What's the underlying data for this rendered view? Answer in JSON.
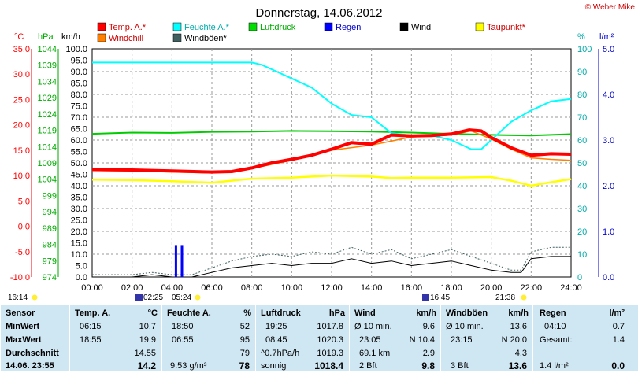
{
  "header": {
    "title": "Donnerstag, 14.06.2012",
    "copyright": "© Weber Mike"
  },
  "legend": [
    {
      "label": "Temp. A.*",
      "color": "#ff0000"
    },
    {
      "label": "Feuchte A.*",
      "color": "#00ffff"
    },
    {
      "label": "Luftdruck",
      "color": "#00dd00"
    },
    {
      "label": "Regen",
      "color": "#0000ff"
    },
    {
      "label": "Wind",
      "color": "#000000"
    },
    {
      "label": "Taupunkt*",
      "color": "#ffff00"
    },
    {
      "label": "Windchill",
      "color": "#ff8000"
    },
    {
      "label": "Windböen*",
      "color": "#406060"
    }
  ],
  "axis_units": {
    "temp": "°C",
    "pressure": "hPa",
    "wind": "km/h",
    "humidity": "%",
    "rain": "l/m²"
  },
  "sun_marks": {
    "sunrise_left": "16:14",
    "moon_1": "02:25",
    "sunrise": "05:24",
    "moon_2": "16:45",
    "sunset": "21:38"
  },
  "chart_data": {
    "type": "line",
    "x_ticks": [
      "00:00",
      "02:00",
      "04:00",
      "06:00",
      "08:00",
      "10:00",
      "12:00",
      "14:00",
      "16:00",
      "18:00",
      "20:00",
      "22:00",
      "24:00"
    ],
    "axes": {
      "temp": {
        "ticks": [
          "35.0",
          "30.0",
          "25.0",
          "20.0",
          "15.0",
          "10.0",
          "5.0",
          "0.0",
          "-5.0",
          "-10.0"
        ],
        "ylim": [
          -10,
          35
        ]
      },
      "pressure": {
        "ticks": [
          "1044",
          "1039",
          "1034",
          "1029",
          "1024",
          "1019",
          "1014",
          "1009",
          "1004",
          "999",
          "994",
          "989",
          "984",
          "979",
          "974"
        ],
        "ylim": [
          974,
          1044
        ]
      },
      "wind": {
        "ticks": [
          "100.0",
          "95.0",
          "90.0",
          "85.0",
          "80.0",
          "75.0",
          "70.0",
          "65.0",
          "60.0",
          "55.0",
          "50.0",
          "45.0",
          "40.0",
          "35.0",
          "30.0",
          "25.0",
          "20.0",
          "15.0",
          "10.0",
          "5.0",
          "0.0"
        ],
        "ylim": [
          0,
          100
        ]
      },
      "humidity": {
        "ticks": [
          "100",
          "90",
          "80",
          "70",
          "60",
          "50",
          "40",
          "30",
          "20",
          "10",
          "0"
        ],
        "ylim": [
          0,
          100
        ]
      },
      "rain": {
        "ticks": [
          "5.0",
          "4.0",
          "3.0",
          "2.0",
          "1.0",
          "0.0"
        ],
        "ylim": [
          0,
          5
        ]
      }
    },
    "series": [
      {
        "name": "Temp. A.*",
        "axis": "temp",
        "x": [
          0,
          2,
          4,
          6,
          7,
          8,
          9,
          10,
          11,
          12,
          13,
          14,
          15,
          16,
          17,
          18,
          18.9,
          19.5,
          20,
          21,
          22,
          23,
          24
        ],
        "y": [
          11.2,
          11.1,
          10.9,
          10.7,
          10.8,
          11.5,
          12.5,
          13.2,
          14.0,
          15.2,
          16.5,
          16.2,
          18.0,
          17.8,
          17.9,
          18.2,
          19.0,
          18.8,
          17.5,
          15.5,
          14.0,
          14.3,
          14.2
        ]
      },
      {
        "name": "Windchill",
        "axis": "temp",
        "x": [
          0,
          2,
          4,
          6,
          8,
          10,
          12,
          14,
          16,
          18,
          19,
          20,
          21,
          22,
          23,
          24
        ],
        "y": [
          11.0,
          10.9,
          10.7,
          10.5,
          11.4,
          13.0,
          15.0,
          16.0,
          17.6,
          18.0,
          18.8,
          17.2,
          15.2,
          13.5,
          13.2,
          13.0
        ]
      },
      {
        "name": "Feuchte A.*",
        "axis": "humidity",
        "x": [
          0,
          1,
          2,
          4,
          6,
          8,
          8.5,
          9,
          10,
          11,
          12,
          13,
          14,
          15,
          16,
          17,
          18,
          19,
          19.5,
          20,
          21,
          22,
          23,
          24
        ],
        "y": [
          94,
          94,
          94,
          94,
          94,
          94,
          93,
          91,
          87,
          83,
          76,
          71,
          70,
          63,
          62,
          62,
          60,
          56,
          56,
          60,
          68,
          73,
          77,
          78
        ]
      },
      {
        "name": "Luftdruck",
        "axis": "pressure",
        "x": [
          0,
          2,
          4,
          6,
          8,
          10,
          12,
          14,
          16,
          18,
          20,
          22,
          24
        ],
        "y": [
          1017.9,
          1018.3,
          1018.2,
          1018.5,
          1018.6,
          1018.8,
          1018.7,
          1018.6,
          1018.3,
          1017.9,
          1017.6,
          1017.4,
          1017.8
        ]
      },
      {
        "name": "Taupunkt*",
        "axis": "temp",
        "x": [
          0,
          2,
          4,
          6,
          8,
          10,
          12,
          14,
          15,
          16,
          18,
          20,
          21,
          22,
          23,
          24
        ],
        "y": [
          9.2,
          9.1,
          8.9,
          8.6,
          9.4,
          9.6,
          10.0,
          9.8,
          9.5,
          9.6,
          9.6,
          9.7,
          9.0,
          8.0,
          8.7,
          9.3
        ]
      },
      {
        "name": "Wind",
        "axis": "wind",
        "x": [
          0,
          2,
          3,
          4,
          5,
          6,
          7,
          8,
          9,
          10,
          11,
          12,
          13,
          14,
          15,
          16,
          17,
          18,
          19,
          20,
          21,
          21.5,
          22,
          23,
          24
        ],
        "y": [
          0,
          0,
          1,
          0,
          0,
          2,
          4,
          5,
          6,
          5,
          6,
          6,
          8,
          6,
          7,
          5,
          6,
          7,
          5,
          3,
          2,
          2,
          8,
          9,
          9
        ]
      },
      {
        "name": "Windböen*",
        "axis": "wind",
        "x": [
          0,
          2,
          3,
          4,
          5,
          6,
          7,
          8,
          9,
          10,
          11,
          12,
          13,
          14,
          15,
          16,
          17,
          18,
          19,
          20,
          21,
          21.5,
          22,
          23,
          24
        ],
        "y": [
          1,
          1,
          2,
          1,
          1,
          4,
          7,
          9,
          10,
          9,
          11,
          10,
          13,
          10,
          12,
          8,
          10,
          12,
          9,
          6,
          3,
          3,
          11,
          13,
          13
        ]
      },
      {
        "name": "Regen",
        "axis": "rain",
        "x": [
          4.0,
          4.2,
          4.3,
          4.5
        ],
        "y": [
          0,
          0.7,
          0,
          0.7
        ]
      }
    ]
  },
  "stats": {
    "sensor": {
      "title": "Sensor",
      "rows": [
        "MinWert",
        "MaxWert",
        "Durchschnitt",
        "14.06. 23:55"
      ]
    },
    "temp": {
      "title": "Temp. A.",
      "unit": "°C",
      "rows": [
        [
          "06:15",
          "10.7"
        ],
        [
          "18:55",
          "19.9"
        ],
        [
          "",
          "14.55"
        ],
        [
          "",
          "14.2"
        ]
      ]
    },
    "humidity": {
      "title": "Feuchte A.",
      "unit": "%",
      "rows": [
        [
          "18:50",
          "52"
        ],
        [
          "06:55",
          "95"
        ],
        [
          "",
          "79"
        ],
        [
          "9.53 g/m³",
          "78"
        ]
      ]
    },
    "pressure": {
      "title": "Luftdruck",
      "unit": "hPa",
      "rows": [
        [
          "19:25",
          "1017.8"
        ],
        [
          "08:45",
          "1020.3"
        ],
        [
          "^0.7hPa/h",
          "1019.3"
        ],
        [
          "sonnig",
          "1018.4"
        ]
      ]
    },
    "wind": {
      "title": "Wind",
      "unit": "km/h",
      "rows": [
        [
          "Ø 10 min.",
          "9.6"
        ],
        [
          "23:05",
          "N 10.4"
        ],
        [
          "69.1 km",
          "2.9"
        ],
        [
          "2 Bft",
          "9.8"
        ]
      ]
    },
    "gusts": {
      "title": "Windböen",
      "unit": "km/h",
      "rows": [
        [
          "Ø 10 min.",
          "13.6"
        ],
        [
          "23:15",
          "N 20.0"
        ],
        [
          "",
          "4.3"
        ],
        [
          "3 Bft",
          "13.6"
        ]
      ]
    },
    "rain": {
      "title": "Regen",
      "unit": "l/m²",
      "rows": [
        [
          "04:10",
          "0.7"
        ],
        [
          "Gesamt:",
          "1.4"
        ],
        [
          "",
          ""
        ],
        [
          "1.4 l/m²",
          "0.0"
        ]
      ]
    }
  }
}
